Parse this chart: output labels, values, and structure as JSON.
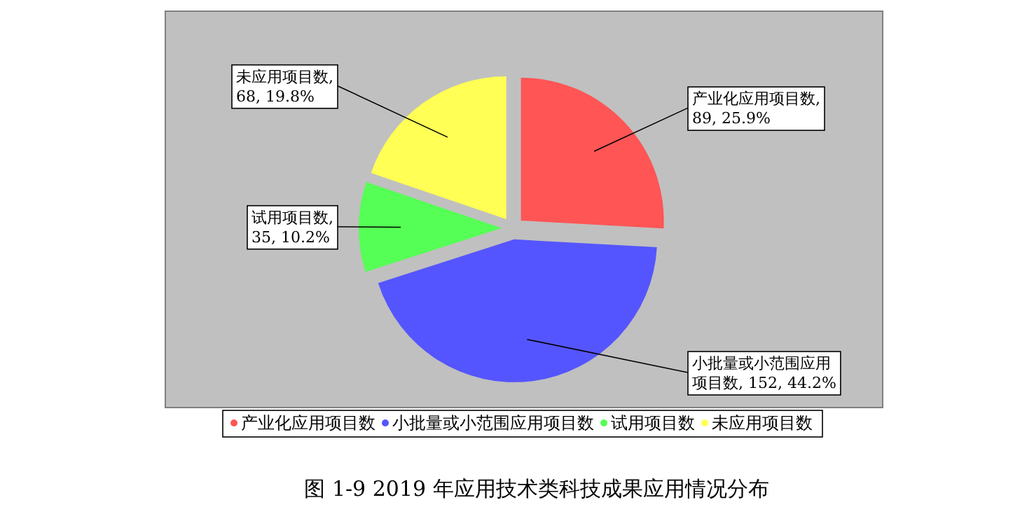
{
  "chart_data": {
    "type": "pie",
    "title": "图 1-9   2019 年应用技术类科技成果应用情况分布",
    "categories": [
      "产业化应用项目数",
      "小批量或小范围应用项目数",
      "试用项目数",
      "未应用项目数"
    ],
    "values": [
      89,
      152,
      35,
      68
    ],
    "colors": [
      "#ff5555",
      "#5555ff",
      "#55ff55",
      "#ffff55"
    ],
    "value_labels": [
      "产业化应用项目数,\n89, 25.9%",
      "小批量或小范围应用项目数, 152, 44.2%",
      "试用项目数,\n35, 10.2%",
      "未应用项目数,\n68, 19.8%"
    ],
    "legend": "bottom"
  }
}
